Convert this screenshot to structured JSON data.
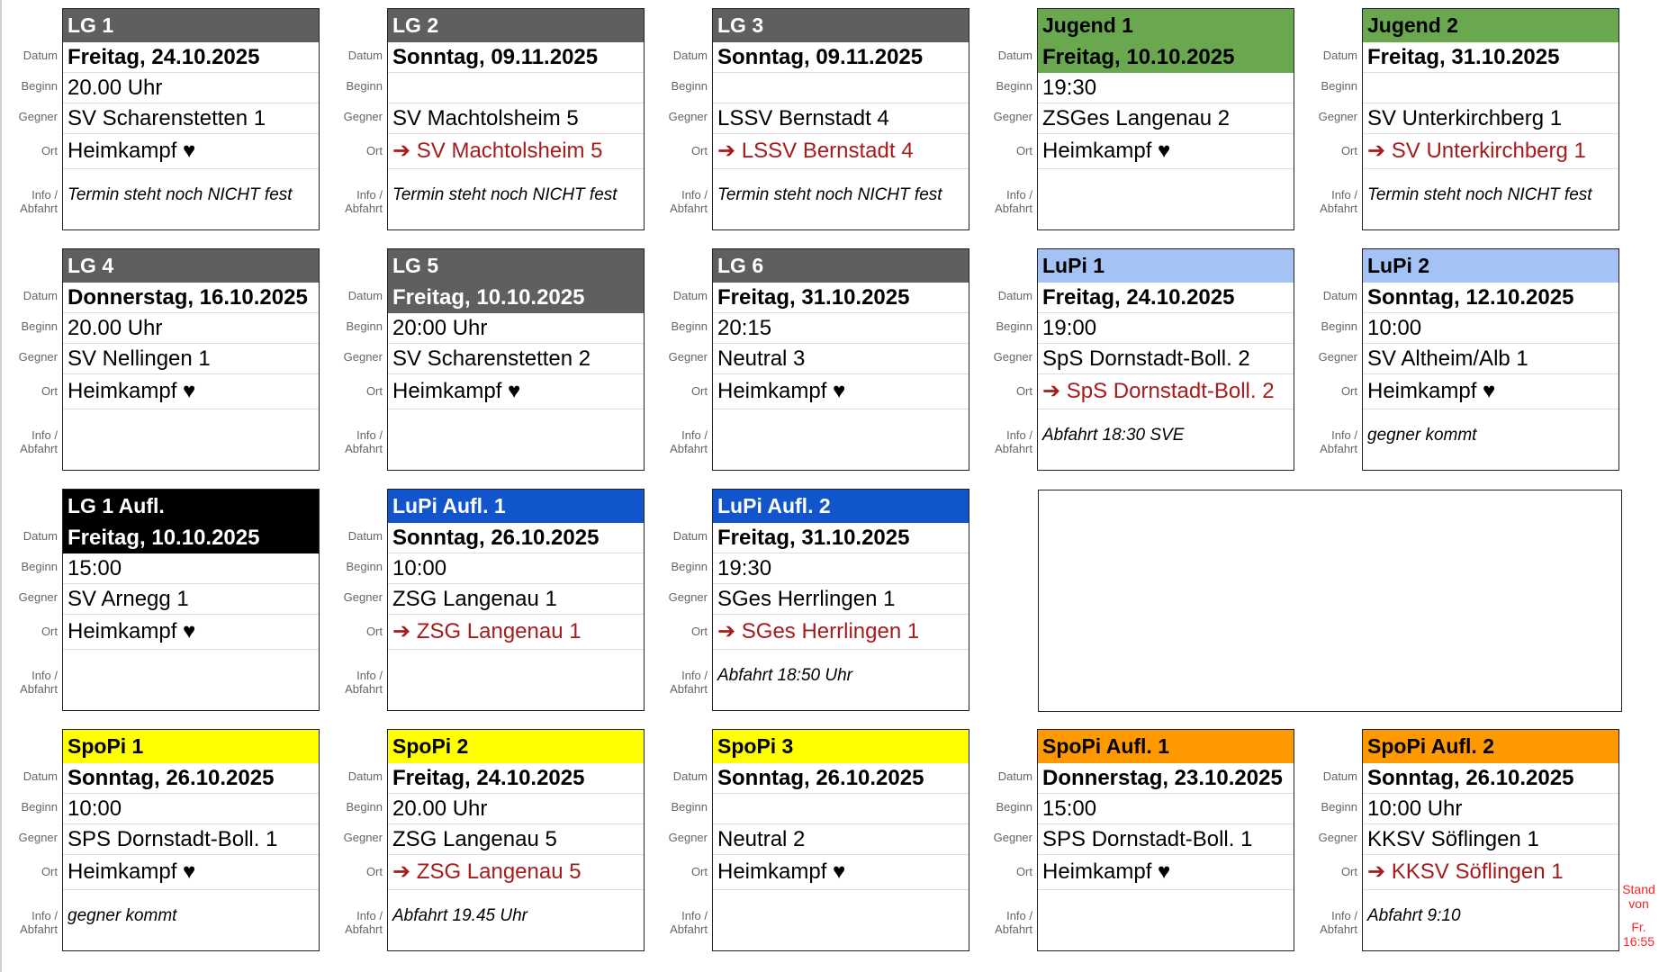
{
  "labels": {
    "datum": "Datum",
    "beginn": "Beginn",
    "gegner": "Gegner",
    "ort": "Ort",
    "info": "Info /",
    "abfahrt": "Abfahrt"
  },
  "colors": {
    "gray": "#5f5f5f",
    "green": "#6aa84f",
    "black": "#000000",
    "lightblue": "#a4c2f4",
    "blue": "#1155cc",
    "yellow": "#ffff00",
    "orange": "#ff9900",
    "away_text": "#a61c1c"
  },
  "home_icon": "heart-icon",
  "cards": [
    {
      "team": "LG 1",
      "bg": "#5f5f5f",
      "fg": "#ffffff",
      "date_in_header": false,
      "datum": "Freitag, 24.10.2025",
      "beginn": "20.00 Uhr",
      "gegner": "SV Scharenstetten 1",
      "ort": "Heimkampf ♥",
      "away": false,
      "info": "Termin steht noch NICHT fest"
    },
    {
      "team": "LG 2",
      "bg": "#5f5f5f",
      "fg": "#ffffff",
      "date_in_header": false,
      "datum": "Sonntag, 09.11.2025",
      "beginn": "",
      "gegner": "SV Machtolsheim 5",
      "ort": "➔ SV Machtolsheim 5",
      "away": true,
      "info": "Termin steht noch NICHT fest"
    },
    {
      "team": "LG 3",
      "bg": "#5f5f5f",
      "fg": "#ffffff",
      "date_in_header": false,
      "datum": "Sonntag, 09.11.2025",
      "beginn": "",
      "gegner": "LSSV Bernstadt 4",
      "ort": "➔ LSSV Bernstadt 4",
      "away": true,
      "info": "Termin steht noch NICHT fest"
    },
    {
      "team": "Jugend 1",
      "bg": "#6aa84f",
      "fg": "#000000",
      "date_in_header": true,
      "datum": "Freitag, 10.10.2025",
      "beginn": "19:30",
      "gegner": "ZSGes Langenau 2",
      "ort": "Heimkampf ♥",
      "away": false,
      "info": ""
    },
    {
      "team": "Jugend 2",
      "bg": "#6aa84f",
      "fg": "#000000",
      "date_in_header": false,
      "datum": "Freitag, 31.10.2025",
      "beginn": "",
      "gegner": "SV Unterkirchberg 1",
      "ort": "➔ SV Unterkirchberg 1",
      "away": true,
      "info": "Termin steht noch NICHT fest"
    },
    {
      "team": "LG 4",
      "bg": "#5f5f5f",
      "fg": "#ffffff",
      "date_in_header": false,
      "datum": "Donnerstag, 16.10.2025",
      "beginn": "20.00 Uhr",
      "gegner": "SV Nellingen 1",
      "ort": "Heimkampf ♥",
      "away": false,
      "info": ""
    },
    {
      "team": "LG 5",
      "bg": "#5f5f5f",
      "fg": "#ffffff",
      "date_in_header": true,
      "datum": "Freitag, 10.10.2025",
      "beginn": "20:00 Uhr",
      "gegner": "SV Scharenstetten 2",
      "ort": "Heimkampf ♥",
      "away": false,
      "info": ""
    },
    {
      "team": "LG 6",
      "bg": "#5f5f5f",
      "fg": "#ffffff",
      "date_in_header": false,
      "datum": "Freitag, 31.10.2025",
      "beginn": "20:15",
      "gegner": "Neutral 3",
      "ort": "Heimkampf ♥",
      "away": false,
      "info": ""
    },
    {
      "team": "LuPi 1",
      "bg": "#a4c2f4",
      "fg": "#000000",
      "date_in_header": false,
      "datum": "Freitag, 24.10.2025",
      "beginn": "19:00",
      "gegner": "SpS Dornstadt-Boll. 2",
      "ort": "➔ SpS Dornstadt-Boll. 2",
      "away": true,
      "info": "Abfahrt 18:30 SVE"
    },
    {
      "team": "LuPi 2",
      "bg": "#a4c2f4",
      "fg": "#000000",
      "date_in_header": false,
      "datum": "Sonntag, 12.10.2025",
      "beginn": "10:00",
      "gegner": "SV Altheim/Alb 1",
      "ort": "Heimkampf ♥",
      "away": false,
      "info": "gegner kommt"
    },
    {
      "team": "LG 1 Aufl.",
      "bg": "#000000",
      "fg": "#ffffff",
      "date_in_header": true,
      "datum": "Freitag, 10.10.2025",
      "beginn": "15:00",
      "gegner": "SV Arnegg 1",
      "ort": "Heimkampf ♥",
      "away": false,
      "info": ""
    },
    {
      "team": "LuPi Aufl. 1",
      "bg": "#1155cc",
      "fg": "#ffffff",
      "date_in_header": false,
      "datum": "Sonntag, 26.10.2025",
      "beginn": "10:00",
      "gegner": "ZSG Langenau 1",
      "ort": "➔ ZSG Langenau 1",
      "away": true,
      "info": ""
    },
    {
      "team": "LuPi Aufl. 2",
      "bg": "#1155cc",
      "fg": "#ffffff",
      "date_in_header": false,
      "datum": "Freitag, 31.10.2025",
      "beginn": "19:30",
      "gegner": "SGes Herrlingen 1",
      "ort": "➔ SGes Herrlingen 1",
      "away": true,
      "info": "Abfahrt 18:50 Uhr"
    },
    null,
    null,
    {
      "team": "SpoPi 1",
      "bg": "#ffff00",
      "fg": "#000000",
      "date_in_header": false,
      "datum": "Sonntag, 26.10.2025",
      "beginn": "10:00",
      "gegner": "SPS Dornstadt-Boll. 1",
      "ort": "Heimkampf ♥",
      "away": false,
      "info": "gegner kommt"
    },
    {
      "team": "SpoPi 2",
      "bg": "#ffff00",
      "fg": "#000000",
      "date_in_header": false,
      "datum": "Freitag, 24.10.2025",
      "beginn": "20.00 Uhr",
      "gegner": "ZSG Langenau 5",
      "ort": "➔ ZSG Langenau 5",
      "away": true,
      "info": "Abfahrt 19.45 Uhr"
    },
    {
      "team": "SpoPi 3",
      "bg": "#ffff00",
      "fg": "#000000",
      "date_in_header": false,
      "datum": "Sonntag, 26.10.2025",
      "beginn": "",
      "gegner": "Neutral 2",
      "ort": "Heimkampf ♥",
      "away": false,
      "info": ""
    },
    {
      "team": "SpoPi Aufl. 1",
      "bg": "#ff9900",
      "fg": "#000000",
      "date_in_header": false,
      "datum": "Donnerstag, 23.10.2025",
      "beginn": "15:00",
      "gegner": "SPS Dornstadt-Boll. 1",
      "ort": "Heimkampf ♥",
      "away": false,
      "info": ""
    },
    {
      "team": "SpoPi Aufl. 2",
      "bg": "#ff9900",
      "fg": "#000000",
      "date_in_header": false,
      "datum": "Sonntag, 26.10.2025",
      "beginn": "10:00 Uhr",
      "gegner": "KKSV Söflingen 1",
      "ort": "➔ KKSV Söflingen 1",
      "away": true,
      "info": "Abfahrt 9:10"
    }
  ],
  "stand": {
    "line1": "Stand",
    "line2": "von",
    "line3": "Fr.",
    "line4": "16:55"
  }
}
